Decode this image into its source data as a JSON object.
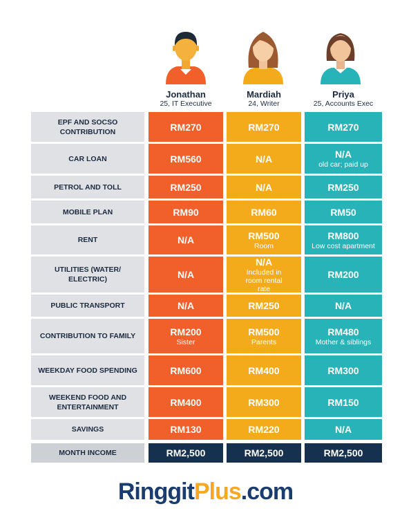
{
  "colors": {
    "orange": "#f15f2b",
    "yellow": "#f4ab1b",
    "teal": "#27b3b7",
    "navy": "#16314f",
    "label_bg": "#dfe1e5",
    "logo_blue": "#1a3c6e",
    "logo_orange": "#f7a823"
  },
  "people": [
    {
      "name": "Jonathan",
      "desc": "25, IT Executive",
      "avatar": "male-avatar-icon"
    },
    {
      "name": "Mardiah",
      "desc": "24, Writer",
      "avatar": "female-avatar-icon"
    },
    {
      "name": "Priya",
      "desc": "25, Accounts Exec",
      "avatar": "female-avatar-icon"
    }
  ],
  "rows": [
    {
      "label": "EPF AND SOCSO CONTRIBUTION",
      "values": [
        {
          "v": "RM270"
        },
        {
          "v": "RM270"
        },
        {
          "v": "RM270"
        }
      ]
    },
    {
      "label": "CAR LOAN",
      "values": [
        {
          "v": "RM560"
        },
        {
          "v": "N/A"
        },
        {
          "v": "N/A",
          "note": "old car; paid up"
        }
      ]
    },
    {
      "label": "PETROL AND TOLL",
      "values": [
        {
          "v": "RM250"
        },
        {
          "v": "N/A"
        },
        {
          "v": "RM250"
        }
      ]
    },
    {
      "label": "MOBILE PLAN",
      "values": [
        {
          "v": "RM90"
        },
        {
          "v": "RM60"
        },
        {
          "v": "RM50"
        }
      ]
    },
    {
      "label": "RENT",
      "values": [
        {
          "v": "N/A"
        },
        {
          "v": "RM500",
          "note": "Room"
        },
        {
          "v": "RM800",
          "note": "Low cost apartment"
        }
      ]
    },
    {
      "label": "UTILITIES (WATER/ ELECTRIC)",
      "values": [
        {
          "v": "N/A"
        },
        {
          "v": "N/A",
          "note": "Included in room rental rate"
        },
        {
          "v": "RM200"
        }
      ]
    },
    {
      "label": "PUBLIC TRANSPORT",
      "values": [
        {
          "v": "N/A"
        },
        {
          "v": "RM250"
        },
        {
          "v": "N/A"
        }
      ]
    },
    {
      "label": "CONTRIBUTION TO FAMILY",
      "values": [
        {
          "v": "RM200",
          "note": "Sister"
        },
        {
          "v": "RM500",
          "note": "Parents"
        },
        {
          "v": "RM480",
          "note": "Mother & siblings"
        }
      ]
    },
    {
      "label": "WEEKDAY FOOD SPENDING",
      "values": [
        {
          "v": "RM600"
        },
        {
          "v": "RM400"
        },
        {
          "v": "RM300"
        }
      ]
    },
    {
      "label": "WEEKEND FOOD AND ENTERTAINMENT",
      "values": [
        {
          "v": "RM400"
        },
        {
          "v": "RM300"
        },
        {
          "v": "RM150"
        }
      ]
    },
    {
      "label": "SAVINGS",
      "values": [
        {
          "v": "RM130"
        },
        {
          "v": "RM220"
        },
        {
          "v": "N/A"
        }
      ]
    }
  ],
  "total": {
    "label": "MONTH INCOME",
    "values": [
      "RM2,500",
      "RM2,500",
      "RM2,500"
    ]
  },
  "logo": {
    "part1": "Ringgit",
    "part2": "Plus",
    "part3": ".com"
  }
}
